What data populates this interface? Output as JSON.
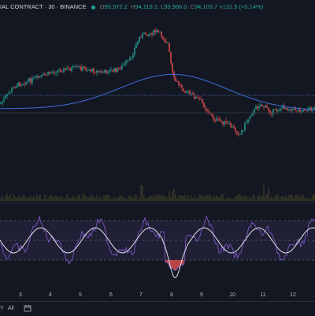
{
  "legend": {
    "symbol_text": "IAL CONTRACT · 30 · BINANCE",
    "open_key": "O",
    "open": "93,972.2",
    "high_key": "H",
    "high": "94,119.1",
    "low_key": "L",
    "low": "93,966.0",
    "close_key": "C",
    "close": "94,103.7",
    "change": "+131.5 (+0.14%)"
  },
  "colors": {
    "background": "#131722",
    "up": "#26a69a",
    "down": "#ef5350",
    "ma_line": "#3f6fd8",
    "rsi_line": "#7e57c2",
    "rsi_ma": "#e0e3eb",
    "volume": "#3a3a25"
  },
  "x_axis": {
    "labels": [
      "3",
      "4",
      "5",
      "6",
      "7",
      "8",
      "9",
      "10",
      "11",
      "12"
    ]
  },
  "bottom_bar": {
    "range_y": "Y",
    "range_all": "All"
  },
  "chart_data": {
    "type": "candlestick",
    "interval": "30",
    "x_labels": [
      "3",
      "4",
      "5",
      "6",
      "7",
      "8",
      "9",
      "10",
      "11",
      "12"
    ],
    "indicators": [
      "moving-average",
      "volume",
      "rsi"
    ],
    "last_ohlc": {
      "open": 93972.2,
      "high": 94119.1,
      "low": 93966.0,
      "close": 94103.7
    }
  }
}
